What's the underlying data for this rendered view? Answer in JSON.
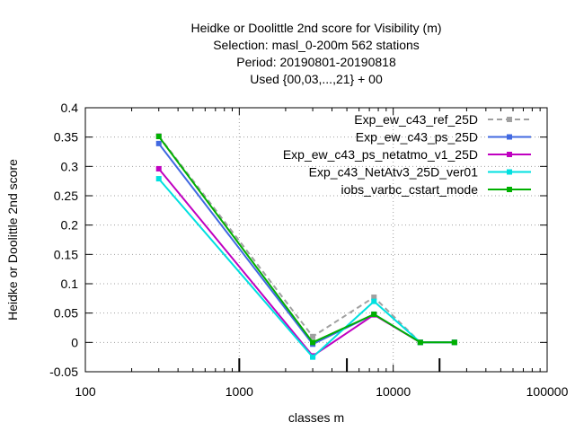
{
  "chart_data": {
    "type": "line",
    "title_lines": [
      "Heidke or Doolittle 2nd score  for Visibility (m)",
      "Selection: masl_0-200m    562 stations",
      "Period: 20190801-20190818",
      "Used {00,03,...,21} + 00"
    ],
    "xlabel": "classes m",
    "ylabel": "Heidke or Doolittle 2nd score",
    "x_scale": "log",
    "xlim": [
      100,
      100000
    ],
    "ylim": [
      -0.05,
      0.4
    ],
    "x_ticks": [
      100,
      1000,
      10000,
      100000
    ],
    "x_tick_labels": [
      "100",
      "1000",
      "10000",
      "100000"
    ],
    "y_ticks": [
      -0.05,
      0,
      0.05,
      0.1,
      0.15,
      0.2,
      0.25,
      0.3,
      0.35,
      0.4
    ],
    "y_tick_labels": [
      "-0.05",
      "0",
      "0.05",
      "0.1",
      "0.15",
      "0.2",
      "0.25",
      "0.3",
      "0.35",
      "0.4"
    ],
    "grid": true,
    "legend_position": "top-right",
    "bottom_markers_x": [
      1000,
      5000,
      20000
    ],
    "series": [
      {
        "name": "Exp_ew_c43_ref_25D",
        "color": "#a0a0a0",
        "dashed": true,
        "x": [
          300,
          3000,
          7500,
          15000,
          25000
        ],
        "y": [
          0.352,
          0.01,
          0.077,
          0.0,
          0.0
        ]
      },
      {
        "name": "Exp_ew_c43_ps_25D",
        "color": "#4169e1",
        "dashed": false,
        "x": [
          300,
          3000,
          7500,
          15000,
          25000
        ],
        "y": [
          0.339,
          -0.003,
          0.048,
          0.0,
          0.0
        ]
      },
      {
        "name": "Exp_ew_c43_ps_netatmo_v1_25D",
        "color": "#c000c0",
        "dashed": false,
        "x": [
          300,
          3000,
          7500,
          15000,
          25000
        ],
        "y": [
          0.296,
          -0.023,
          0.047,
          0.0,
          0.0
        ]
      },
      {
        "name": "Exp_c43_NetAtv3_25D_ver01",
        "color": "#00e0e0",
        "dashed": false,
        "x": [
          300,
          3000,
          7500,
          15000,
          25000
        ],
        "y": [
          0.279,
          -0.025,
          0.07,
          0.0,
          0.0
        ]
      },
      {
        "name": "iobs_varbc_cstart_mode",
        "color": "#00b000",
        "dashed": false,
        "x": [
          300,
          3000,
          7500,
          15000,
          25000
        ],
        "y": [
          0.351,
          0.0,
          0.048,
          0.0,
          0.0
        ]
      }
    ]
  }
}
